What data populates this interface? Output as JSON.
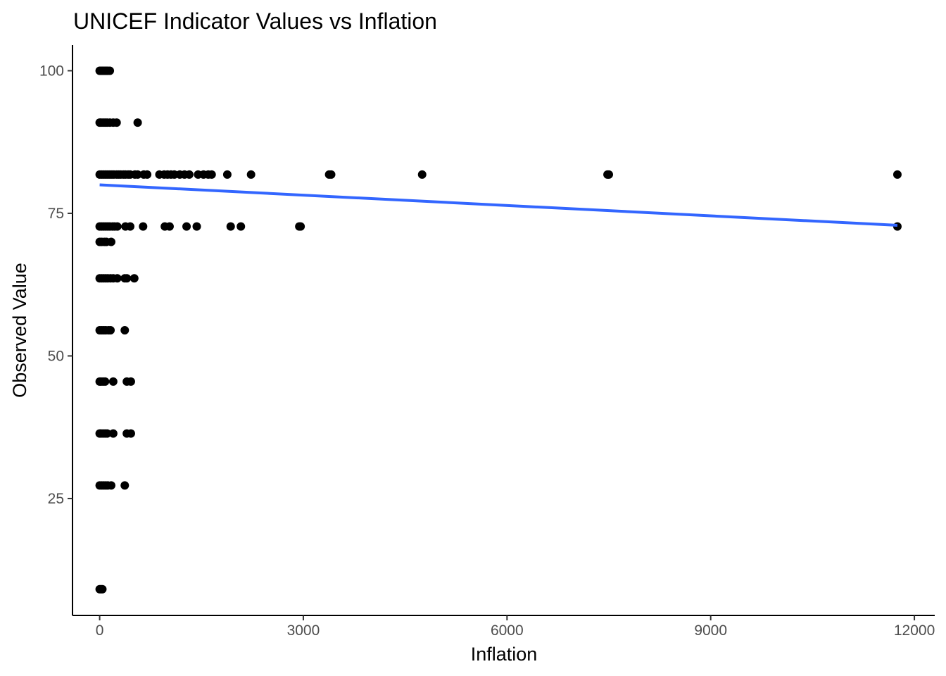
{
  "chart_data": {
    "type": "scatter",
    "title": "UNICEF Indicator Values vs Inflation",
    "xlabel": "Inflation",
    "ylabel": "Observed Value",
    "xlim": [
      -400,
      12300
    ],
    "ylim": [
      4.5,
      104.5
    ],
    "xticks": [
      0,
      3000,
      6000,
      9000,
      12000
    ],
    "xtick_labels": [
      "0",
      "3000",
      "6000",
      "9000",
      "12000"
    ],
    "yticks": [
      25,
      50,
      75,
      100
    ],
    "ytick_labels": [
      "25",
      "50",
      "75",
      "100"
    ],
    "grid": false,
    "legend": "none",
    "point_color": "#000000",
    "trend_color": "#3366ff",
    "points": [
      [
        0,
        100
      ],
      [
        20,
        100
      ],
      [
        40,
        100
      ],
      [
        60,
        100
      ],
      [
        80,
        100
      ],
      [
        100,
        100
      ],
      [
        120,
        100
      ],
      [
        150,
        100
      ],
      [
        0,
        90.9
      ],
      [
        20,
        90.9
      ],
      [
        50,
        90.9
      ],
      [
        80,
        90.9
      ],
      [
        110,
        90.9
      ],
      [
        150,
        90.9
      ],
      [
        200,
        90.9
      ],
      [
        250,
        90.9
      ],
      [
        560,
        90.9
      ],
      [
        0,
        81.8
      ],
      [
        30,
        81.8
      ],
      [
        60,
        81.8
      ],
      [
        90,
        81.8
      ],
      [
        120,
        81.8
      ],
      [
        150,
        81.8
      ],
      [
        180,
        81.8
      ],
      [
        210,
        81.8
      ],
      [
        250,
        81.8
      ],
      [
        280,
        81.8
      ],
      [
        310,
        81.8
      ],
      [
        350,
        81.8
      ],
      [
        380,
        81.8
      ],
      [
        420,
        81.8
      ],
      [
        450,
        81.8
      ],
      [
        520,
        81.8
      ],
      [
        560,
        81.8
      ],
      [
        650,
        81.8
      ],
      [
        700,
        81.8
      ],
      [
        880,
        81.8
      ],
      [
        950,
        81.8
      ],
      [
        1000,
        81.8
      ],
      [
        1050,
        81.8
      ],
      [
        1100,
        81.8
      ],
      [
        1180,
        81.8
      ],
      [
        1250,
        81.8
      ],
      [
        1320,
        81.8
      ],
      [
        1450,
        81.8
      ],
      [
        1530,
        81.8
      ],
      [
        1600,
        81.8
      ],
      [
        1650,
        81.8
      ],
      [
        1880,
        81.8
      ],
      [
        2230,
        81.8
      ],
      [
        3380,
        81.8
      ],
      [
        3410,
        81.8
      ],
      [
        4750,
        81.8
      ],
      [
        7480,
        81.8
      ],
      [
        7500,
        81.8
      ],
      [
        11750,
        81.8
      ],
      [
        0,
        72.7
      ],
      [
        30,
        72.7
      ],
      [
        60,
        72.7
      ],
      [
        90,
        72.7
      ],
      [
        120,
        72.7
      ],
      [
        150,
        72.7
      ],
      [
        190,
        72.7
      ],
      [
        220,
        72.7
      ],
      [
        260,
        72.7
      ],
      [
        380,
        72.7
      ],
      [
        450,
        72.7
      ],
      [
        640,
        72.7
      ],
      [
        960,
        72.7
      ],
      [
        1030,
        72.7
      ],
      [
        1280,
        72.7
      ],
      [
        1430,
        72.7
      ],
      [
        1930,
        72.7
      ],
      [
        2080,
        72.7
      ],
      [
        2940,
        72.7
      ],
      [
        2960,
        72.7
      ],
      [
        11750,
        72.7
      ],
      [
        0,
        70
      ],
      [
        30,
        70
      ],
      [
        70,
        70
      ],
      [
        100,
        70
      ],
      [
        170,
        70
      ],
      [
        0,
        63.6
      ],
      [
        30,
        63.6
      ],
      [
        60,
        63.6
      ],
      [
        90,
        63.6
      ],
      [
        120,
        63.6
      ],
      [
        160,
        63.6
      ],
      [
        200,
        63.6
      ],
      [
        260,
        63.6
      ],
      [
        370,
        63.6
      ],
      [
        400,
        63.6
      ],
      [
        510,
        63.6
      ],
      [
        0,
        54.5
      ],
      [
        30,
        54.5
      ],
      [
        60,
        54.5
      ],
      [
        90,
        54.5
      ],
      [
        130,
        54.5
      ],
      [
        160,
        54.5
      ],
      [
        370,
        54.5
      ],
      [
        0,
        45.5
      ],
      [
        20,
        45.5
      ],
      [
        50,
        45.5
      ],
      [
        80,
        45.5
      ],
      [
        200,
        45.5
      ],
      [
        400,
        45.5
      ],
      [
        460,
        45.5
      ],
      [
        0,
        36.4
      ],
      [
        20,
        36.4
      ],
      [
        50,
        36.4
      ],
      [
        80,
        36.4
      ],
      [
        110,
        36.4
      ],
      [
        200,
        36.4
      ],
      [
        400,
        36.4
      ],
      [
        460,
        36.4
      ],
      [
        0,
        27.3
      ],
      [
        30,
        27.3
      ],
      [
        60,
        27.3
      ],
      [
        90,
        27.3
      ],
      [
        120,
        27.3
      ],
      [
        170,
        27.3
      ],
      [
        370,
        27.3
      ],
      [
        0,
        9.1
      ],
      [
        20,
        9.1
      ],
      [
        40,
        9.1
      ]
    ],
    "trend_line": {
      "x": [
        0,
        11750
      ],
      "y": [
        80,
        72.9
      ]
    }
  }
}
